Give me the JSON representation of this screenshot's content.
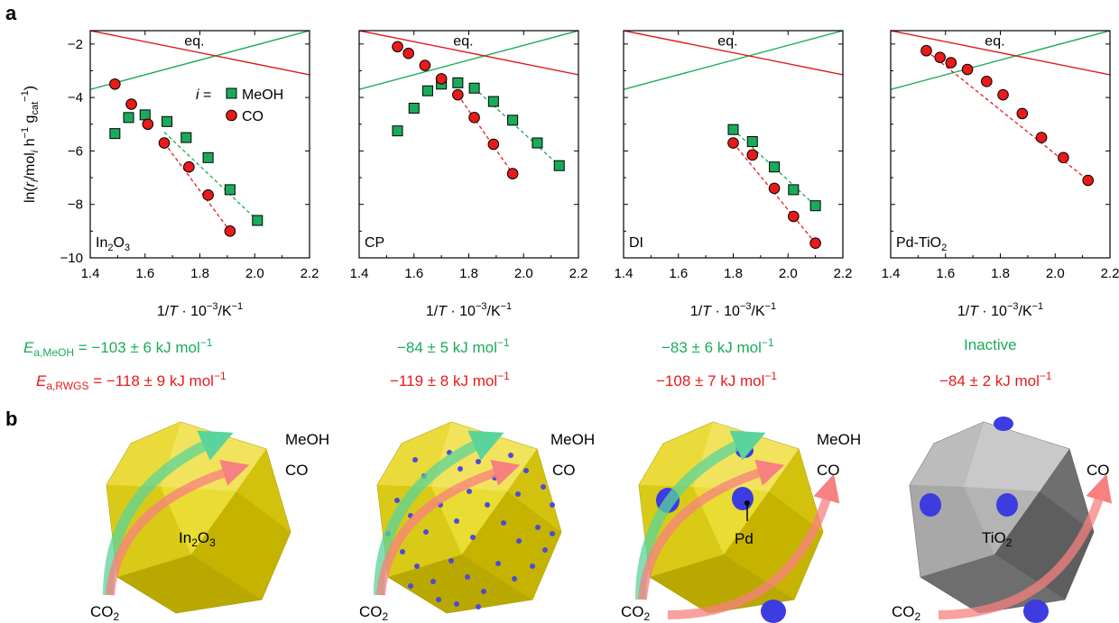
{
  "panel_labels": {
    "a": "a",
    "b": "b"
  },
  "colors": {
    "meoh": "#1aab5a",
    "co": "#e81a1a",
    "eq_meoh": "#1aab5a",
    "eq_co": "#e01919",
    "text_green": "#1aab5a",
    "text_red": "#e81a1a"
  },
  "axes": {
    "ylabel": "ln(r_i/mol_i h^-1 g_cat^-1)",
    "xlabel": "1/T · 10^-3/K^-1",
    "xticks": [
      "1.4",
      "1.6",
      "1.8",
      "2.0",
      "2.2"
    ],
    "yticks": [
      "-2",
      "-4",
      "-6",
      "-8",
      "-10"
    ],
    "xlim": [
      1.4,
      2.2
    ],
    "ylim": [
      -10,
      -1.5
    ]
  },
  "legend": {
    "prefix": "i =",
    "meoh": "MeOH",
    "co": "CO"
  },
  "eq_label": "eq.",
  "chart_data": [
    {
      "type": "scatter",
      "panel_label": "In2O3",
      "series": [
        {
          "name": "MeOH",
          "x": [
            1.49,
            1.54,
            1.6,
            1.68,
            1.75,
            1.83,
            1.91,
            2.01
          ],
          "y": [
            -5.35,
            -4.75,
            -4.65,
            -4.9,
            -5.5,
            -6.25,
            -7.45,
            -8.6
          ]
        },
        {
          "name": "CO",
          "x": [
            1.49,
            1.55,
            1.61,
            1.67,
            1.76,
            1.83,
            1.91
          ],
          "y": [
            -3.5,
            -4.25,
            -5.0,
            -5.7,
            -6.6,
            -7.65,
            -9.0
          ]
        }
      ],
      "fits": [
        {
          "series": "MeOH",
          "x": [
            1.67,
            2.01
          ],
          "y": [
            -5.3,
            -8.6
          ]
        },
        {
          "series": "CO",
          "x": [
            1.67,
            1.91
          ],
          "y": [
            -5.7,
            -9.0
          ]
        }
      ],
      "equilibrium": [
        {
          "series": "MeOH",
          "x": [
            1.4,
            2.2
          ],
          "y": [
            -3.7,
            -1.5
          ]
        },
        {
          "series": "CO",
          "x": [
            1.4,
            2.2
          ],
          "y": [
            -1.5,
            -3.15
          ]
        }
      ],
      "annotation_text": {
        "meoh": "E_a,MeOH = −103 ± 6 kJ mol^−1",
        "rwgs": "E_a,RWGS = −118 ± 9 kJ mol^−1"
      }
    },
    {
      "type": "scatter",
      "panel_label": "CP",
      "series": [
        {
          "name": "MeOH",
          "x": [
            1.54,
            1.6,
            1.65,
            1.7,
            1.76,
            1.82,
            1.89,
            1.96,
            2.05,
            2.13
          ],
          "y": [
            -5.25,
            -4.4,
            -3.75,
            -3.5,
            -3.45,
            -3.65,
            -4.15,
            -4.85,
            -5.7,
            -6.55
          ]
        },
        {
          "name": "CO",
          "x": [
            1.54,
            1.58,
            1.64,
            1.7,
            1.76,
            1.82,
            1.89,
            1.96
          ],
          "y": [
            -2.1,
            -2.35,
            -2.8,
            -3.3,
            -3.9,
            -4.75,
            -5.75,
            -6.85
          ]
        }
      ],
      "fits": [
        {
          "series": "MeOH",
          "x": [
            1.82,
            2.13
          ],
          "y": [
            -3.65,
            -6.55
          ]
        },
        {
          "series": "CO",
          "x": [
            1.76,
            1.96
          ],
          "y": [
            -3.9,
            -6.85
          ]
        }
      ],
      "equilibrium": [
        {
          "series": "MeOH",
          "x": [
            1.4,
            2.2
          ],
          "y": [
            -3.7,
            -1.5
          ]
        },
        {
          "series": "CO",
          "x": [
            1.4,
            2.2
          ],
          "y": [
            -1.5,
            -3.15
          ]
        }
      ],
      "annotation_text": {
        "meoh": "−84 ± 5 kJ mol^−1",
        "rwgs": "−119 ± 8 kJ mol^−1"
      }
    },
    {
      "type": "scatter",
      "panel_label": "DI",
      "series": [
        {
          "name": "MeOH",
          "x": [
            1.8,
            1.87,
            1.95,
            2.02,
            2.1
          ],
          "y": [
            -5.2,
            -5.65,
            -6.6,
            -7.45,
            -8.05
          ]
        },
        {
          "name": "CO",
          "x": [
            1.8,
            1.87,
            1.95,
            2.02,
            2.1
          ],
          "y": [
            -5.7,
            -6.15,
            -7.4,
            -8.45,
            -9.45
          ]
        }
      ],
      "fits": [
        {
          "series": "MeOH",
          "x": [
            1.8,
            2.1
          ],
          "y": [
            -5.2,
            -8.05
          ]
        },
        {
          "series": "CO",
          "x": [
            1.8,
            2.1
          ],
          "y": [
            -5.7,
            -9.45
          ]
        }
      ],
      "equilibrium": [
        {
          "series": "MeOH",
          "x": [
            1.4,
            2.2
          ],
          "y": [
            -3.7,
            -1.5
          ]
        },
        {
          "series": "CO",
          "x": [
            1.4,
            2.2
          ],
          "y": [
            -1.5,
            -3.15
          ]
        }
      ],
      "annotation_text": {
        "meoh": "−83 ± 6 kJ mol^−1",
        "rwgs": "−108 ± 7 kJ mol^−1"
      }
    },
    {
      "type": "scatter",
      "panel_label": "Pd-TiO2",
      "series": [
        {
          "name": "CO",
          "x": [
            1.53,
            1.58,
            1.62,
            1.68,
            1.75,
            1.81,
            1.88,
            1.95,
            2.03,
            2.12
          ],
          "y": [
            -2.25,
            -2.5,
            -2.7,
            -2.95,
            -3.4,
            -3.9,
            -4.6,
            -5.5,
            -6.25,
            -7.1
          ]
        }
      ],
      "fits": [
        {
          "series": "CO",
          "x": [
            1.53,
            2.12
          ],
          "y": [
            -2.25,
            -7.1
          ]
        }
      ],
      "equilibrium": [
        {
          "series": "MeOH",
          "x": [
            1.4,
            2.2
          ],
          "y": [
            -3.7,
            -1.5
          ]
        },
        {
          "series": "CO",
          "x": [
            1.4,
            2.2
          ],
          "y": [
            -1.5,
            -3.15
          ]
        }
      ],
      "annotation_text": {
        "meoh": "Inactive",
        "rwgs": "−84 ± 2 kJ mol^−1"
      }
    }
  ],
  "schematic": {
    "panels": [
      {
        "crystal_label": "In2O3",
        "products": [
          "MeOH",
          "CO"
        ],
        "reactant": "CO2"
      },
      {
        "crystal_label": "",
        "products": [
          "MeOH",
          "CO"
        ],
        "reactant": "CO2"
      },
      {
        "crystal_label": "Pd",
        "products": [
          "MeOH",
          "CO"
        ],
        "reactant": "CO2"
      },
      {
        "crystal_label": "TiO2",
        "products": [
          "CO"
        ],
        "reactant": "CO2"
      }
    ]
  }
}
